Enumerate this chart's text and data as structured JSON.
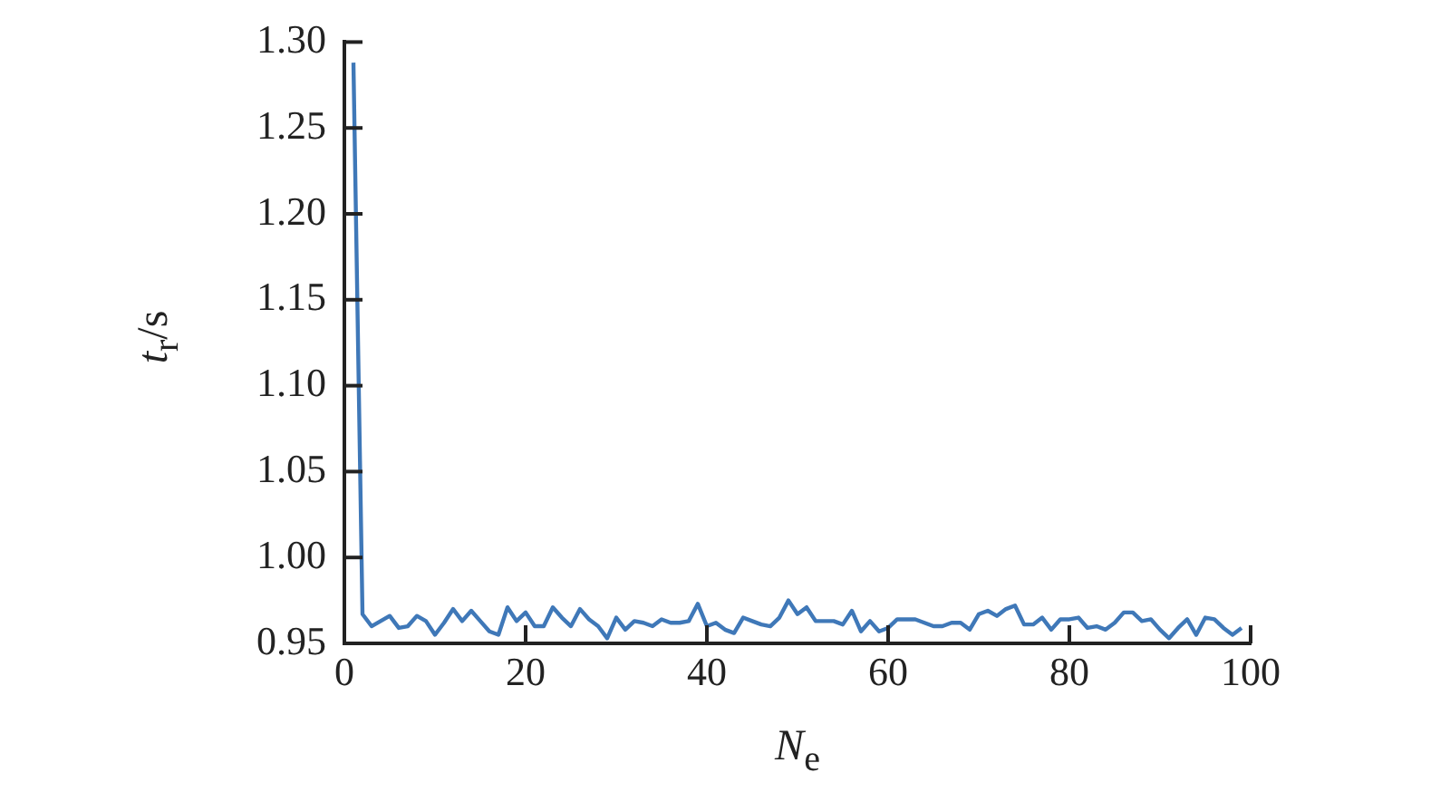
{
  "chart_data": {
    "type": "line",
    "xlabel": "N$_{e}$",
    "ylabel": "t$_{r}$/s",
    "x": [
      1,
      2,
      3,
      4,
      5,
      6,
      7,
      8,
      9,
      10,
      11,
      12,
      13,
      14,
      15,
      16,
      17,
      18,
      19,
      20,
      21,
      22,
      23,
      24,
      25,
      26,
      27,
      28,
      29,
      30,
      31,
      32,
      33,
      34,
      35,
      36,
      37,
      38,
      39,
      40,
      41,
      42,
      43,
      44,
      45,
      46,
      47,
      48,
      49,
      50,
      51,
      52,
      53,
      54,
      55,
      56,
      57,
      58,
      59,
      60,
      61,
      62,
      63,
      64,
      65,
      66,
      67,
      68,
      69,
      70,
      71,
      72,
      73,
      74,
      75,
      76,
      77,
      78,
      79,
      80,
      81,
      82,
      83,
      84,
      85,
      86,
      87,
      88,
      89,
      90,
      91,
      92,
      93,
      94,
      95,
      96,
      97,
      98,
      99
    ],
    "series": [
      {
        "color": "#3f78b8",
        "values": [
          1.288,
          0.967,
          0.96,
          0.963,
          0.966,
          0.959,
          0.96,
          0.966,
          0.963,
          0.955,
          0.962,
          0.97,
          0.963,
          0.969,
          0.963,
          0.957,
          0.955,
          0.971,
          0.963,
          0.968,
          0.96,
          0.96,
          0.971,
          0.965,
          0.96,
          0.97,
          0.964,
          0.96,
          0.953,
          0.965,
          0.958,
          0.963,
          0.962,
          0.96,
          0.964,
          0.962,
          0.962,
          0.963,
          0.973,
          0.96,
          0.962,
          0.958,
          0.956,
          0.965,
          0.963,
          0.961,
          0.96,
          0.965,
          0.975,
          0.967,
          0.971,
          0.963,
          0.963,
          0.963,
          0.961,
          0.969,
          0.957,
          0.963,
          0.957,
          0.959,
          0.964,
          0.964,
          0.964,
          0.962,
          0.96,
          0.96,
          0.962,
          0.962,
          0.958,
          0.967,
          0.969,
          0.966,
          0.97,
          0.972,
          0.961,
          0.961,
          0.965,
          0.958,
          0.964,
          0.964,
          0.965,
          0.959,
          0.96,
          0.958,
          0.962,
          0.968,
          0.968,
          0.963,
          0.964,
          0.958,
          0.953,
          0.959,
          0.964,
          0.955,
          0.965,
          0.964,
          0.959,
          0.955,
          0.959
        ]
      }
    ],
    "xlim": [
      0,
      100
    ],
    "xticks": [
      0,
      20,
      40,
      60,
      80,
      100
    ],
    "ylim": [
      0.95,
      1.3
    ],
    "yticks": [
      {
        "value": 0.95,
        "label": "0.95"
      },
      {
        "value": 1.0,
        "label": "1.00"
      },
      {
        "value": 1.05,
        "label": "1.05"
      },
      {
        "value": 1.1,
        "label": "1.10"
      },
      {
        "value": 1.15,
        "label": "1.15"
      },
      {
        "value": 1.2,
        "label": "1.20"
      },
      {
        "value": 1.25,
        "label": "1.25"
      },
      {
        "value": 1.3,
        "label": "1.30"
      }
    ],
    "grid": false,
    "legend": false,
    "marker": "none",
    "line_style": "solid"
  }
}
